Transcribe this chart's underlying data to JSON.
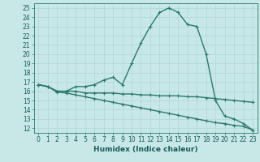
{
  "title": "",
  "xlabel": "Humidex (Indice chaleur)",
  "bg_color": "#c8e8e8",
  "line_color": "#2a7a6a",
  "grid_color": "#b0d4d4",
  "xlim": [
    -0.5,
    23.5
  ],
  "ylim": [
    11.5,
    25.5
  ],
  "xticks": [
    0,
    1,
    2,
    3,
    4,
    5,
    6,
    7,
    8,
    9,
    10,
    11,
    12,
    13,
    14,
    15,
    16,
    17,
    18,
    19,
    20,
    21,
    22,
    23
  ],
  "yticks": [
    12,
    13,
    14,
    15,
    16,
    17,
    18,
    19,
    20,
    21,
    22,
    23,
    24,
    25
  ],
  "line1_x": [
    0,
    1,
    2,
    3,
    4,
    5,
    6,
    7,
    8,
    9,
    10,
    11,
    12,
    13,
    14,
    15,
    16,
    17,
    18,
    19,
    20,
    21,
    22,
    23
  ],
  "line1_y": [
    16.7,
    16.5,
    16.0,
    16.0,
    16.5,
    16.5,
    16.7,
    17.2,
    17.5,
    16.7,
    19.0,
    21.2,
    23.0,
    24.5,
    25.0,
    24.5,
    23.2,
    23.0,
    20.0,
    15.0,
    13.3,
    13.0,
    12.5,
    11.8
  ],
  "line2_x": [
    0,
    1,
    2,
    3,
    4,
    5,
    6,
    7,
    8,
    9,
    10,
    11,
    12,
    13,
    14,
    15,
    16,
    17,
    18,
    19,
    20,
    21,
    22,
    23
  ],
  "line2_y": [
    16.7,
    16.5,
    16.0,
    16.0,
    16.0,
    15.8,
    15.8,
    15.8,
    15.8,
    15.7,
    15.7,
    15.6,
    15.6,
    15.5,
    15.5,
    15.5,
    15.4,
    15.4,
    15.3,
    15.2,
    15.1,
    15.0,
    14.9,
    14.8
  ],
  "line3_x": [
    0,
    1,
    2,
    3,
    4,
    5,
    6,
    7,
    8,
    9,
    10,
    11,
    12,
    13,
    14,
    15,
    16,
    17,
    18,
    19,
    20,
    21,
    22,
    23
  ],
  "line3_y": [
    16.7,
    16.5,
    15.9,
    15.8,
    15.6,
    15.4,
    15.2,
    15.0,
    14.8,
    14.6,
    14.4,
    14.2,
    14.0,
    13.8,
    13.6,
    13.4,
    13.2,
    13.0,
    12.8,
    12.6,
    12.5,
    12.3,
    12.2,
    11.8
  ],
  "marker": "+",
  "markersize": 3.5,
  "linewidth": 1.0,
  "tick_fontsize": 5.5,
  "label_fontsize": 6.5
}
